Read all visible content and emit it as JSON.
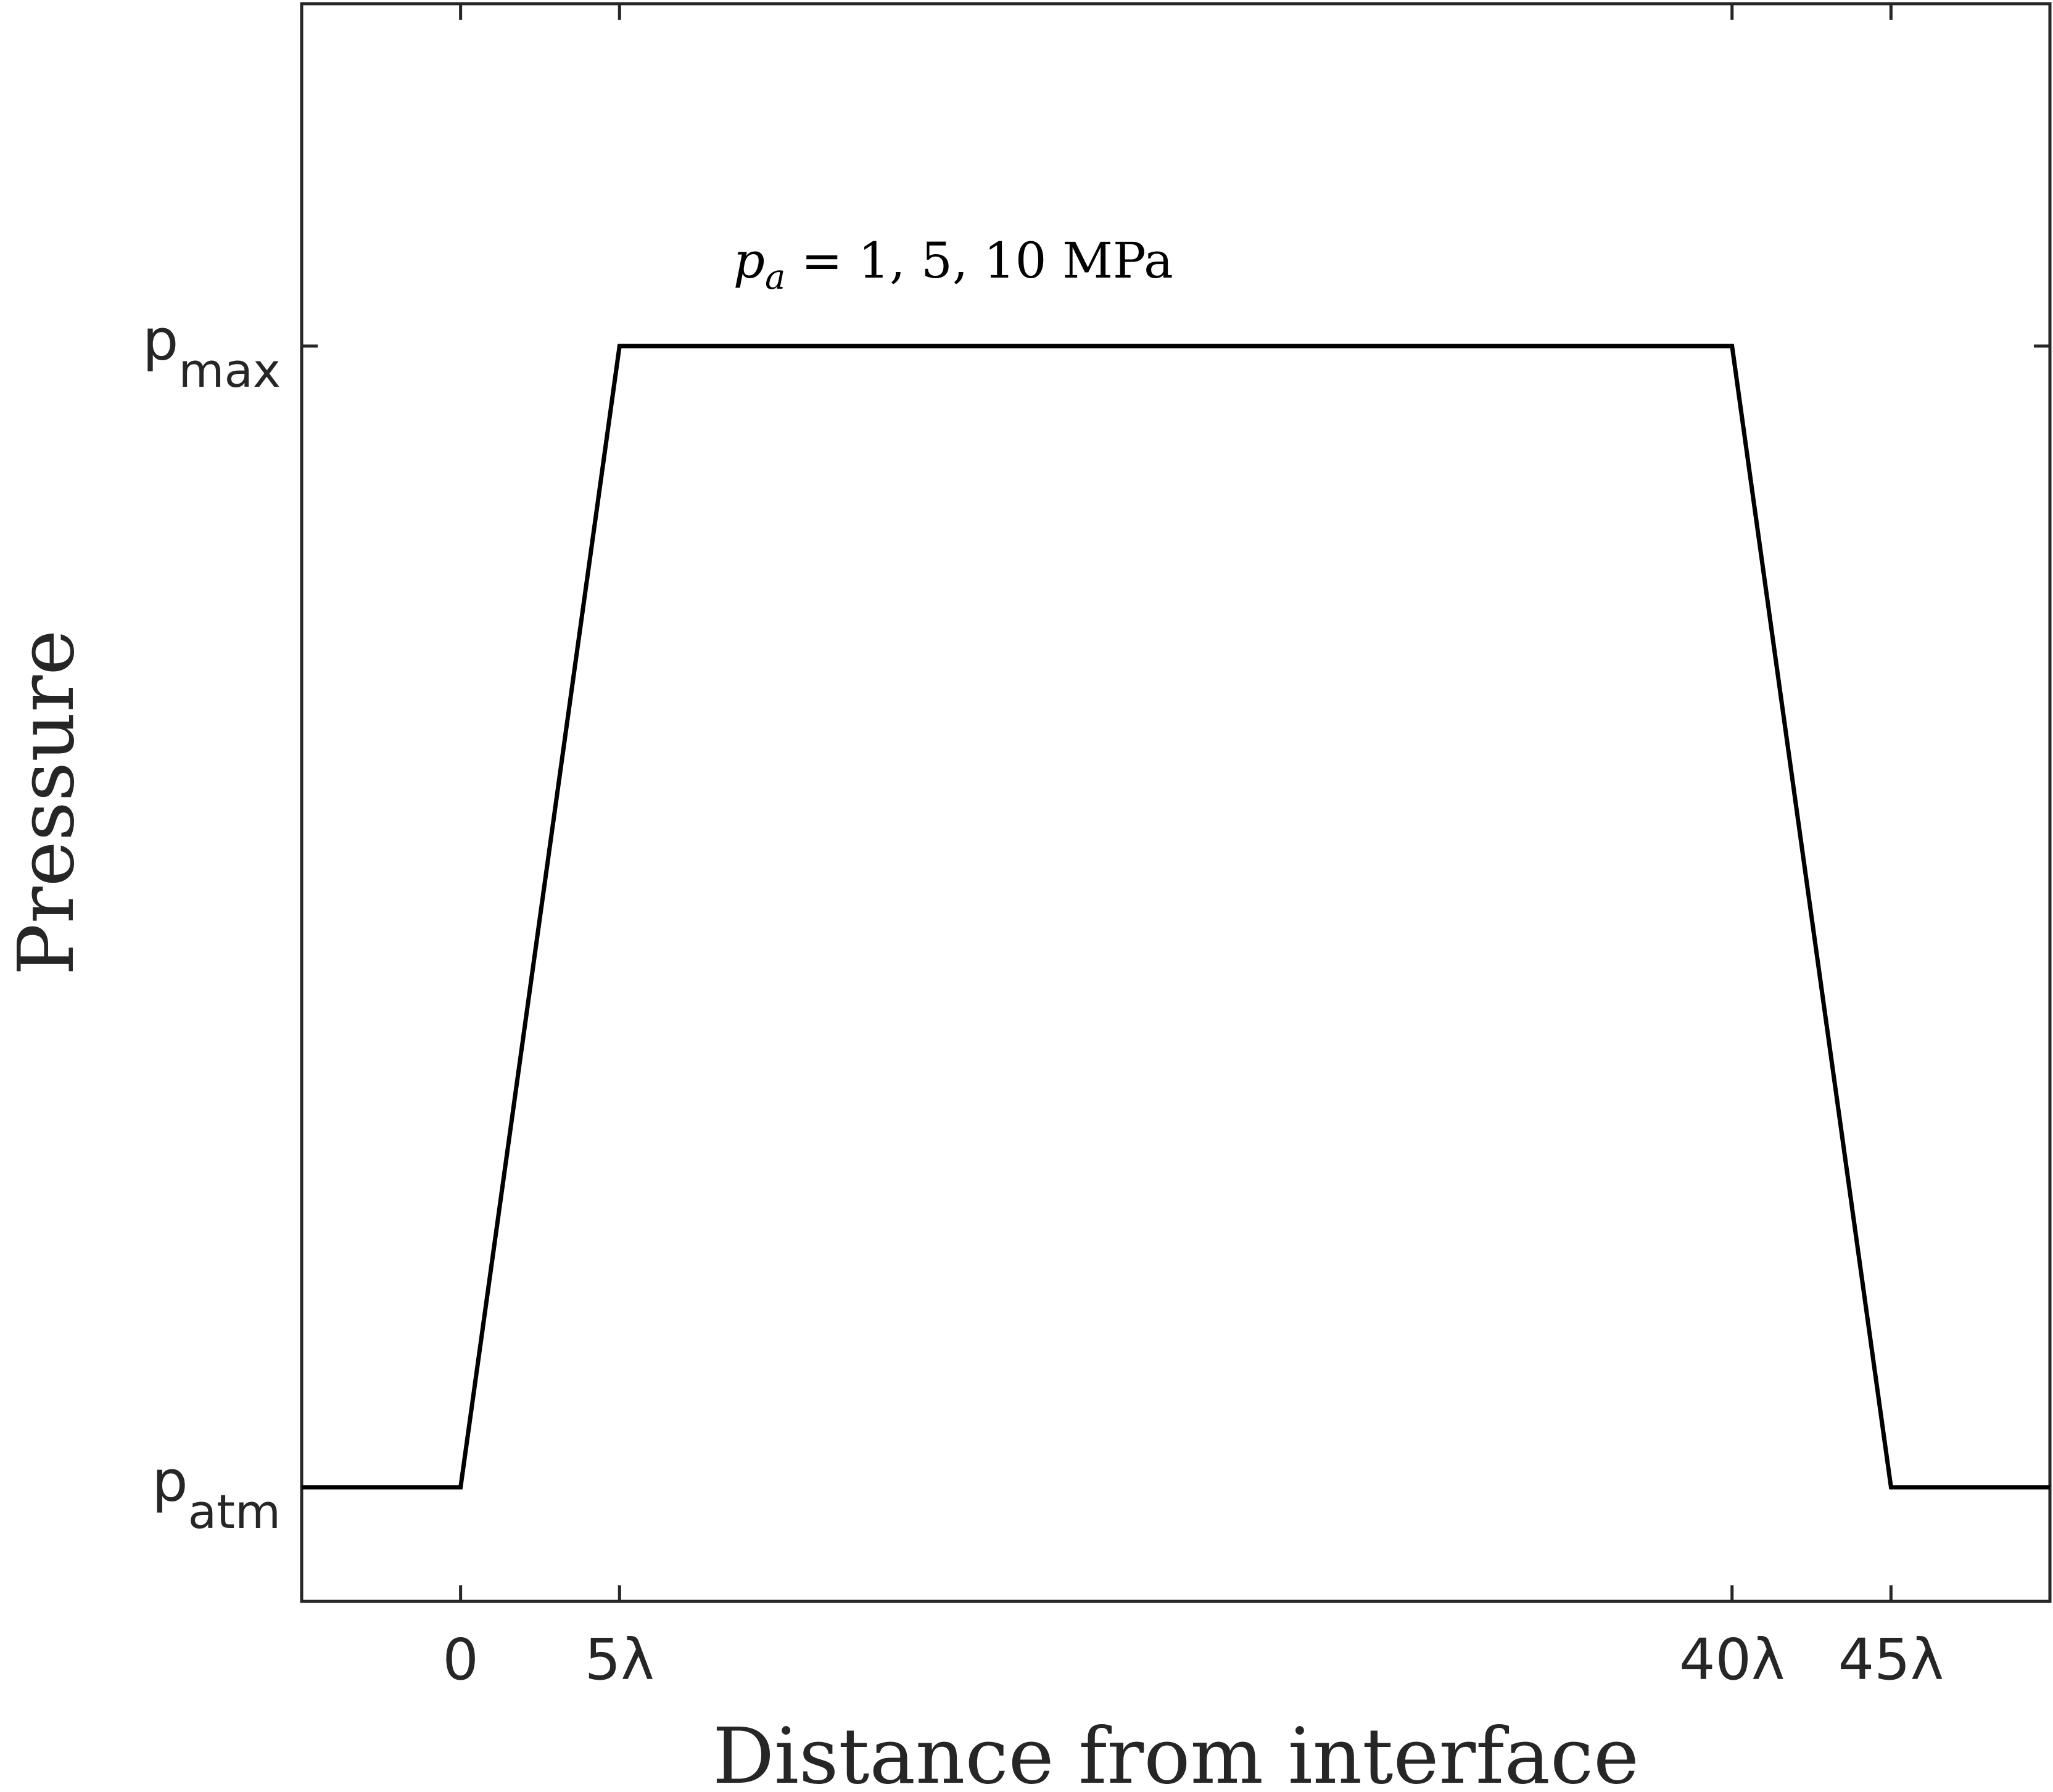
{
  "chart_data": {
    "type": "line",
    "title": "",
    "xlabel": "Distance from interface",
    "ylabel": "Pressure",
    "xlim": [
      -5,
      50
    ],
    "ylim": [
      -0.1,
      1.3
    ],
    "grid": false,
    "legend": "none",
    "x_ticks": [
      {
        "value": 0,
        "label": "0"
      },
      {
        "value": 5,
        "label": "5λ"
      },
      {
        "value": 40,
        "label": "40λ"
      },
      {
        "value": 45,
        "label": "45λ"
      }
    ],
    "y_ticks": [
      {
        "value": 0,
        "label": "p",
        "sub": "atm"
      },
      {
        "value": 1,
        "label": "p",
        "sub": "max"
      }
    ],
    "series": [
      {
        "x": [
          -5,
          0,
          5,
          40,
          45,
          50
        ],
        "y": [
          0,
          0,
          1,
          1,
          0,
          0
        ],
        "color": "#000000"
      }
    ],
    "annotations": [
      {
        "text": "p",
        "sub": "a",
        "rest": " = 1, 5, 10 MPa",
        "x": 15.5,
        "y": 1.06
      }
    ]
  }
}
